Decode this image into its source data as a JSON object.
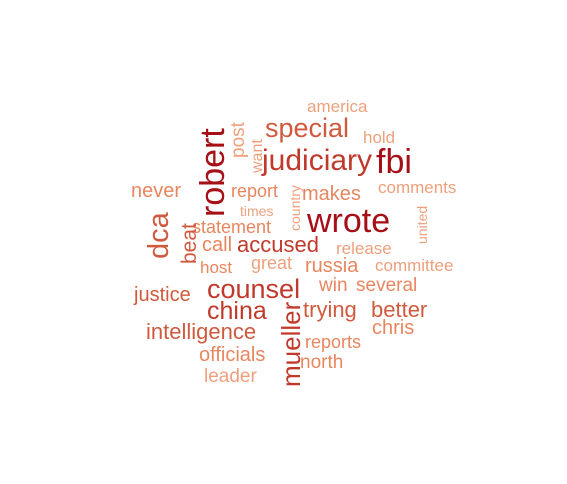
{
  "colors": {
    "darkest": "#a50f15",
    "dark": "#c0392b",
    "mid": "#d05a3e",
    "light": "#e8865f",
    "lightest": "#eea07c"
  },
  "words": [
    {
      "text": "america",
      "tone": "lightest"
    },
    {
      "text": "special",
      "tone": "mid"
    },
    {
      "text": "hold",
      "tone": "lightest"
    },
    {
      "text": "post",
      "tone": "lightest"
    },
    {
      "text": "want",
      "tone": "lightest"
    },
    {
      "text": "robert",
      "tone": "darkest"
    },
    {
      "text": "judiciary",
      "tone": "dark"
    },
    {
      "text": "fbi",
      "tone": "darkest"
    },
    {
      "text": "never",
      "tone": "light"
    },
    {
      "text": "report",
      "tone": "light"
    },
    {
      "text": "country",
      "tone": "lightest"
    },
    {
      "text": "makes",
      "tone": "light"
    },
    {
      "text": "comments",
      "tone": "lightest"
    },
    {
      "text": "times",
      "tone": "lightest"
    },
    {
      "text": "wrote",
      "tone": "darkest"
    },
    {
      "text": "united",
      "tone": "lightest"
    },
    {
      "text": "statement",
      "tone": "light"
    },
    {
      "text": "dca",
      "tone": "mid"
    },
    {
      "text": "beat",
      "tone": "mid"
    },
    {
      "text": "call",
      "tone": "light"
    },
    {
      "text": "accused",
      "tone": "dark"
    },
    {
      "text": "release",
      "tone": "lightest"
    },
    {
      "text": "host",
      "tone": "light"
    },
    {
      "text": "great",
      "tone": "lightest"
    },
    {
      "text": "russia",
      "tone": "light"
    },
    {
      "text": "committee",
      "tone": "lightest"
    },
    {
      "text": "counsel",
      "tone": "dark"
    },
    {
      "text": "win",
      "tone": "light"
    },
    {
      "text": "several",
      "tone": "light"
    },
    {
      "text": "justice",
      "tone": "mid"
    },
    {
      "text": "china",
      "tone": "dark"
    },
    {
      "text": "trying",
      "tone": "mid"
    },
    {
      "text": "better",
      "tone": "mid"
    },
    {
      "text": "mueller",
      "tone": "dark"
    },
    {
      "text": "intelligence",
      "tone": "mid"
    },
    {
      "text": "chris",
      "tone": "light"
    },
    {
      "text": "reports",
      "tone": "light"
    },
    {
      "text": "officials",
      "tone": "light"
    },
    {
      "text": "north",
      "tone": "light"
    },
    {
      "text": "leader",
      "tone": "lightest"
    }
  ]
}
